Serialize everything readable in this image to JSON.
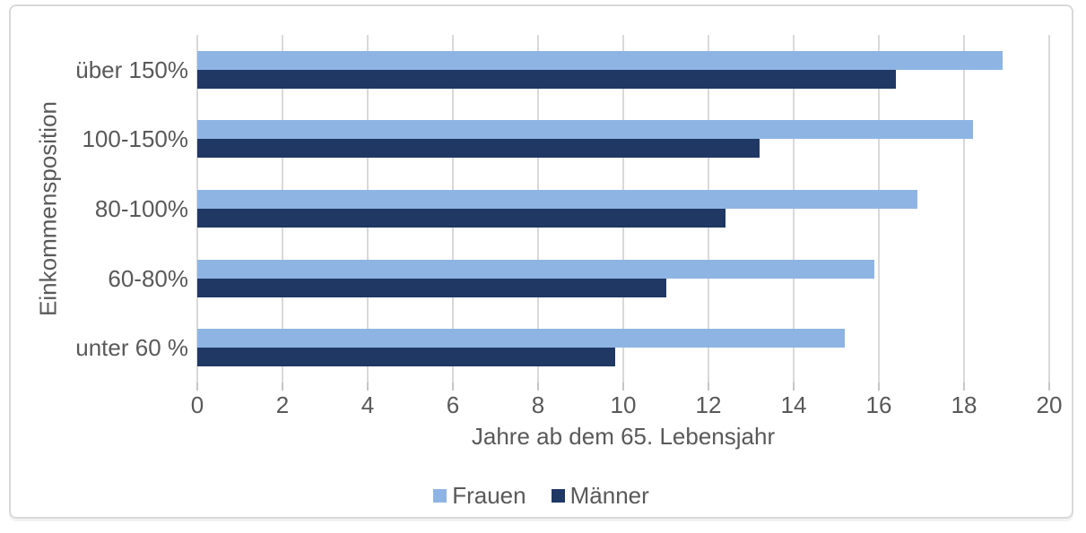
{
  "chart_data": {
    "type": "bar",
    "orientation": "horizontal",
    "categories": [
      "über 150%",
      "100-150%",
      "80-100%",
      "60-80%",
      "unter 60 %"
    ],
    "series": [
      {
        "name": "Frauen",
        "color": "#8EB4E3",
        "values": [
          18.9,
          18.2,
          16.9,
          15.9,
          15.2
        ]
      },
      {
        "name": "Männer",
        "color": "#1F3864",
        "values": [
          16.4,
          13.2,
          12.4,
          11.0,
          9.8
        ]
      }
    ],
    "xlabel": "Jahre ab dem 65. Lebensjahr",
    "ylabel": "Einkommensposition",
    "xlim": [
      0,
      20
    ],
    "xticks": [
      0,
      2,
      4,
      6,
      8,
      10,
      12,
      14,
      16,
      18,
      20
    ],
    "grid": true,
    "legend_position": "bottom"
  },
  "colors": {
    "gridline": "#D9D9D9",
    "tick": "#C6C6C6",
    "text": "#595959",
    "frame_border": "#D9D9D9",
    "background": "#FFFFFF"
  }
}
